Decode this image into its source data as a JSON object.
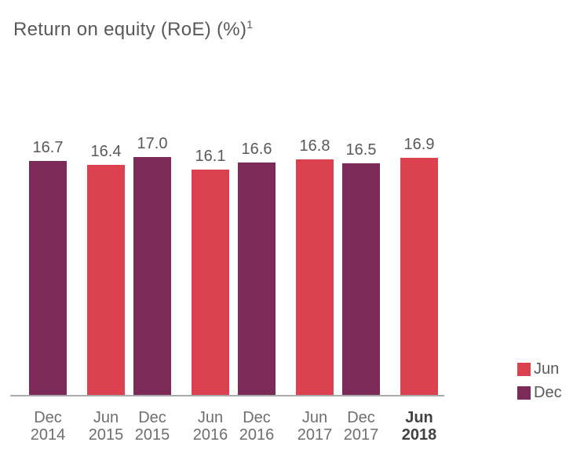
{
  "title": {
    "text": "Return on equity (RoE) (%)",
    "superscript": "1"
  },
  "colors": {
    "series": {
      "Jun": "#DB414F",
      "Dec": "#7C2B59"
    },
    "title_text": "#58595B",
    "value_text": "#58595B",
    "tick_text": "#6D6E71",
    "tick_text_highlight": "#414042",
    "axis_line": "#A8AAAD",
    "background": "#FFFFFF"
  },
  "chart_data": {
    "type": "bar",
    "title": "Return on equity (RoE) (%)¹",
    "xlabel": "",
    "ylabel": "",
    "ylim": [
      0,
      17.0
    ],
    "grid": false,
    "value_labels": true,
    "legend_position": "bottom-right",
    "categories": [
      "Dec 2014",
      "Jun 2015",
      "Dec 2015",
      "Jun 2016",
      "Dec 2016",
      "Jun 2017",
      "Dec 2017",
      "Jun 2018"
    ],
    "values": [
      16.7,
      16.4,
      17.0,
      16.1,
      16.6,
      16.8,
      16.5,
      16.9
    ],
    "bars": [
      {
        "period": "Dec",
        "year": "2014",
        "series": "Dec",
        "value": 16.7,
        "value_label": "16.7",
        "highlight": false
      },
      {
        "period": "Jun",
        "year": "2015",
        "series": "Jun",
        "value": 16.4,
        "value_label": "16.4",
        "highlight": false
      },
      {
        "period": "Dec",
        "year": "2015",
        "series": "Dec",
        "value": 17.0,
        "value_label": "17.0",
        "highlight": false
      },
      {
        "period": "Jun",
        "year": "2016",
        "series": "Jun",
        "value": 16.1,
        "value_label": "16.1",
        "highlight": false
      },
      {
        "period": "Dec",
        "year": "2016",
        "series": "Dec",
        "value": 16.6,
        "value_label": "16.6",
        "highlight": false
      },
      {
        "period": "Jun",
        "year": "2017",
        "series": "Jun",
        "value": 16.8,
        "value_label": "16.8",
        "highlight": false
      },
      {
        "period": "Dec",
        "year": "2017",
        "series": "Dec",
        "value": 16.5,
        "value_label": "16.5",
        "highlight": false
      },
      {
        "period": "Jun",
        "year": "2018",
        "series": "Jun",
        "value": 16.9,
        "value_label": "16.9",
        "highlight": true
      }
    ],
    "legend": [
      {
        "label": "Jun",
        "color": "#DB414F"
      },
      {
        "label": "Dec",
        "color": "#7C2B59"
      }
    ]
  }
}
